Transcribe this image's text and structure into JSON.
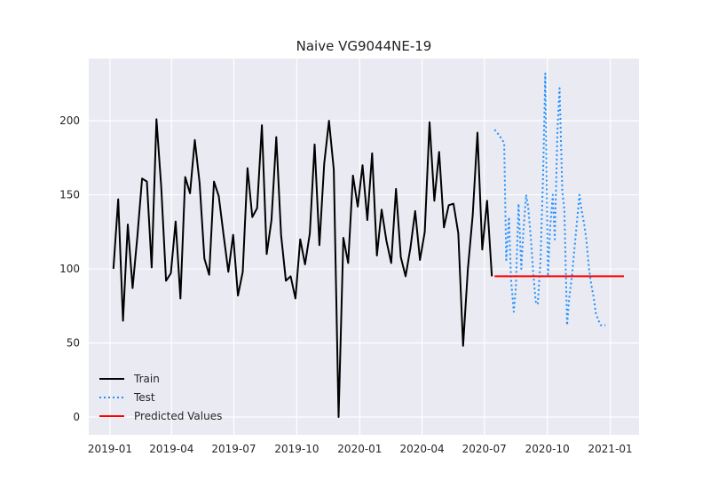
{
  "chart_data": {
    "type": "line",
    "title": "Naive VG9044NE-19",
    "xlabel": "",
    "ylabel": "",
    "grid": true,
    "legend_position": "bottom-left",
    "x_ticks": [
      "2019-01",
      "2019-04",
      "2019-07",
      "2019-10",
      "2020-01",
      "2020-04",
      "2020-07",
      "2020-10",
      "2021-01"
    ],
    "y_ticks": [
      0,
      50,
      100,
      150,
      200
    ],
    "xlim": [
      "2018-12-01",
      "2021-02-12"
    ],
    "ylim": [
      -12,
      242
    ],
    "series": [
      {
        "name": "Train",
        "color": "#000000",
        "style": "solid",
        "x": [
          "2019-01-06",
          "2019-01-13",
          "2019-01-20",
          "2019-01-27",
          "2019-02-03",
          "2019-02-10",
          "2019-02-17",
          "2019-02-24",
          "2019-03-03",
          "2019-03-10",
          "2019-03-17",
          "2019-03-24",
          "2019-03-31",
          "2019-04-07",
          "2019-04-14",
          "2019-04-21",
          "2019-04-28",
          "2019-05-05",
          "2019-05-12",
          "2019-05-19",
          "2019-05-26",
          "2019-06-02",
          "2019-06-09",
          "2019-06-16",
          "2019-06-23",
          "2019-06-30",
          "2019-07-07",
          "2019-07-14",
          "2019-07-21",
          "2019-07-28",
          "2019-08-04",
          "2019-08-11",
          "2019-08-18",
          "2019-08-25",
          "2019-09-01",
          "2019-09-08",
          "2019-09-15",
          "2019-09-22",
          "2019-09-29",
          "2019-10-06",
          "2019-10-13",
          "2019-10-20",
          "2019-10-27",
          "2019-11-03",
          "2019-11-10",
          "2019-11-17",
          "2019-11-24",
          "2019-12-01",
          "2019-12-08",
          "2019-12-15",
          "2019-12-22",
          "2019-12-29",
          "2020-01-05",
          "2020-01-12",
          "2020-01-19",
          "2020-01-26",
          "2020-02-02",
          "2020-02-09",
          "2020-02-16",
          "2020-02-23",
          "2020-03-01",
          "2020-03-08",
          "2020-03-15",
          "2020-03-22",
          "2020-03-29",
          "2020-04-05",
          "2020-04-12",
          "2020-04-19",
          "2020-04-26",
          "2020-05-03",
          "2020-05-10",
          "2020-05-17",
          "2020-05-24",
          "2020-05-31",
          "2020-06-07",
          "2020-06-14",
          "2020-06-21",
          "2020-06-28",
          "2020-07-05",
          "2020-07-12"
        ],
        "values": [
          100,
          147,
          65,
          130,
          87,
          122,
          161,
          159,
          101,
          201,
          155,
          92,
          97,
          132,
          80,
          162,
          151,
          187,
          158,
          107,
          96,
          159,
          149,
          123,
          98,
          123,
          82,
          98,
          168,
          135,
          141,
          197,
          110,
          133,
          189,
          123,
          92,
          95,
          80,
          120,
          103,
          124,
          184,
          116,
          171,
          200,
          167,
          0,
          121,
          104,
          163,
          142,
          170,
          133,
          178,
          109,
          140,
          119,
          104,
          154,
          108,
          95,
          114,
          139,
          106,
          125,
          199,
          146,
          179,
          128,
          143,
          144,
          124,
          48,
          100,
          136,
          192,
          113,
          146,
          95
        ]
      },
      {
        "name": "Test",
        "color": "#1e90ff",
        "style": "dotted",
        "x": [
          "2020-07-16",
          "2020-07-23",
          "2020-07-30",
          "2020-08-02",
          "2020-08-06",
          "2020-08-09",
          "2020-08-13",
          "2020-08-16",
          "2020-08-20",
          "2020-08-24",
          "2020-08-27",
          "2020-08-31",
          "2020-09-03",
          "2020-09-07",
          "2020-09-10",
          "2020-09-14",
          "2020-09-17",
          "2020-09-21",
          "2020-09-25",
          "2020-09-28",
          "2020-10-02",
          "2020-10-05",
          "2020-10-09",
          "2020-10-12",
          "2020-10-16",
          "2020-10-19",
          "2020-10-23",
          "2020-10-26",
          "2020-10-30",
          "2020-11-02",
          "2020-11-06",
          "2020-11-09",
          "2020-11-13",
          "2020-11-17",
          "2020-11-20",
          "2020-11-24",
          "2020-11-27",
          "2020-12-01",
          "2020-12-04",
          "2020-12-08",
          "2020-12-11",
          "2020-12-15",
          "2020-12-18",
          "2020-12-22",
          "2020-12-25"
        ],
        "values": [
          194,
          190,
          185,
          106,
          135,
          93,
          71,
          87,
          144,
          100,
          125,
          150,
          142,
          120,
          100,
          78,
          76,
          105,
          165,
          232,
          95,
          127,
          150,
          120,
          195,
          222,
          152,
          140,
          62,
          80,
          95,
          110,
          130,
          150,
          140,
          130,
          120,
          100,
          90,
          80,
          70,
          65,
          62,
          62,
          62
        ]
      },
      {
        "name": "Predicted Values",
        "color": "#ff0000",
        "style": "solid",
        "x": [
          "2020-07-16",
          "2021-01-21"
        ],
        "values": [
          95,
          95
        ]
      }
    ]
  }
}
